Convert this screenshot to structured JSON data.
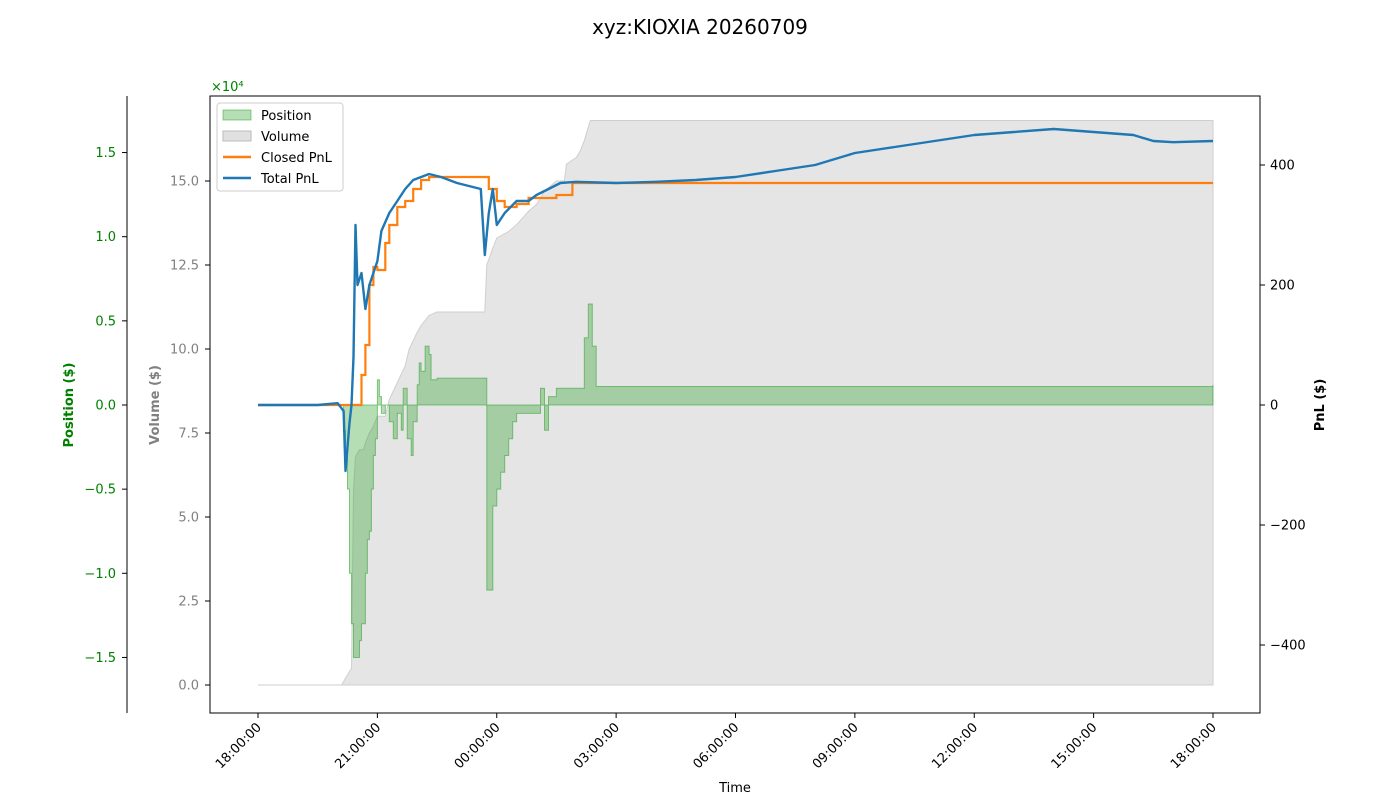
{
  "chart_data": {
    "type": "line",
    "title": "xyz:KIOXIA 20260709",
    "xlabel": "Time",
    "x_ticks": [
      "18:00:00",
      "21:00:00",
      "00:00:00",
      "03:00:00",
      "06:00:00",
      "09:00:00",
      "12:00:00",
      "15:00:00",
      "18:00:00"
    ],
    "position_axis": {
      "label": "Position ($)",
      "multiplier": "×10⁴",
      "color": "#008000",
      "ticks": [
        "1.5",
        "1.0",
        "0.5",
        "0.0",
        "−0.5",
        "−1.0",
        "−1.5"
      ],
      "tick_values": [
        1.5,
        1.0,
        0.5,
        0.0,
        -0.5,
        -1.0,
        -1.5
      ]
    },
    "volume_axis": {
      "label": "Volume ($)",
      "color": "#808080",
      "ticks": [
        "15.0",
        "12.5",
        "10.0",
        "7.5",
        "5.0",
        "2.5",
        "0.0"
      ],
      "tick_values": [
        15.0,
        12.5,
        10.0,
        7.5,
        5.0,
        2.5,
        0.0
      ]
    },
    "pnl_axis": {
      "label": "PnL ($)",
      "color": "#000000",
      "ticks": [
        "400",
        "200",
        "0",
        "−200",
        "−400"
      ],
      "tick_values": [
        400,
        200,
        0,
        -200,
        -400
      ]
    },
    "legend_position": "top-left",
    "legend": [
      "Position",
      "Volume",
      "Closed PnL",
      "Total PnL"
    ],
    "colors": {
      "position_fill": "#2ca02c",
      "volume_fill": "#d3d3d3",
      "closed_pnl": "#ff7f0e",
      "total_pnl": "#1f77b4"
    },
    "series": [
      {
        "name": "Volume",
        "axis": "volume",
        "points": [
          [
            0,
            0
          ],
          [
            2.1,
            0
          ],
          [
            2.2,
            0.2
          ],
          [
            2.35,
            0.5
          ],
          [
            2.4,
            5.8
          ],
          [
            2.45,
            6.8
          ],
          [
            2.55,
            7.0
          ],
          [
            2.65,
            7.0
          ],
          [
            2.7,
            7.2
          ],
          [
            2.8,
            7.5
          ],
          [
            2.9,
            7.7
          ],
          [
            3.0,
            8.0
          ],
          [
            3.2,
            8.0
          ],
          [
            3.3,
            8.5
          ],
          [
            3.5,
            9.0
          ],
          [
            3.7,
            9.5
          ],
          [
            3.8,
            10.0
          ],
          [
            4.0,
            10.5
          ],
          [
            4.1,
            10.7
          ],
          [
            4.3,
            11.0
          ],
          [
            4.5,
            11.1
          ],
          [
            5.7,
            11.1
          ],
          [
            5.75,
            12.5
          ],
          [
            5.9,
            13.0
          ],
          [
            6.0,
            13.3
          ],
          [
            6.3,
            13.5
          ],
          [
            6.5,
            13.7
          ],
          [
            6.8,
            14.1
          ],
          [
            7.0,
            14.3
          ],
          [
            7.2,
            14.7
          ],
          [
            7.5,
            15.0
          ],
          [
            7.7,
            15.0
          ],
          [
            7.75,
            15.5
          ],
          [
            8.0,
            15.7
          ],
          [
            8.1,
            15.9
          ],
          [
            8.2,
            16.2
          ],
          [
            8.3,
            16.6
          ],
          [
            8.35,
            16.8
          ],
          [
            24,
            16.8
          ]
        ]
      },
      {
        "name": "Position",
        "axis": "position",
        "points": [
          [
            0,
            0
          ],
          [
            2.1,
            0
          ],
          [
            2.15,
            -0.15
          ],
          [
            2.2,
            -0.3
          ],
          [
            2.25,
            -0.5
          ],
          [
            2.3,
            -1.0
          ],
          [
            2.35,
            -1.3
          ],
          [
            2.4,
            -1.5
          ],
          [
            2.45,
            -1.5
          ],
          [
            2.55,
            -1.4
          ],
          [
            2.6,
            -1.3
          ],
          [
            2.7,
            -1.0
          ],
          [
            2.75,
            -0.8
          ],
          [
            2.8,
            -0.75
          ],
          [
            2.85,
            -0.5
          ],
          [
            2.9,
            -0.3
          ],
          [
            2.95,
            -0.2
          ],
          [
            3.0,
            0.15
          ],
          [
            3.05,
            0.05
          ],
          [
            3.1,
            -0.05
          ],
          [
            3.2,
            0
          ],
          [
            3.3,
            -0.1
          ],
          [
            3.4,
            -0.2
          ],
          [
            3.5,
            -0.05
          ],
          [
            3.6,
            -0.15
          ],
          [
            3.65,
            0.1
          ],
          [
            3.75,
            -0.2
          ],
          [
            3.85,
            -0.3
          ],
          [
            3.9,
            -0.1
          ],
          [
            4.0,
            0.12
          ],
          [
            4.05,
            0.25
          ],
          [
            4.1,
            0.2
          ],
          [
            4.2,
            0.35
          ],
          [
            4.3,
            0.3
          ],
          [
            4.35,
            0.15
          ],
          [
            4.5,
            0.16
          ],
          [
            5.7,
            0.16
          ],
          [
            5.75,
            -1.1
          ],
          [
            5.85,
            -1.1
          ],
          [
            5.9,
            -0.6
          ],
          [
            6.0,
            -0.5
          ],
          [
            6.1,
            -0.4
          ],
          [
            6.2,
            -0.3
          ],
          [
            6.3,
            -0.2
          ],
          [
            6.4,
            -0.1
          ],
          [
            6.5,
            -0.05
          ],
          [
            7.0,
            -0.05
          ],
          [
            7.1,
            0.1
          ],
          [
            7.2,
            -0.15
          ],
          [
            7.3,
            0.05
          ],
          [
            7.5,
            0.1
          ],
          [
            8.0,
            0.1
          ],
          [
            8.2,
            0.4
          ],
          [
            8.3,
            0.6
          ],
          [
            8.4,
            0.35
          ],
          [
            8.5,
            0.11
          ],
          [
            24,
            0.12
          ]
        ]
      },
      {
        "name": "Closed PnL",
        "axis": "pnl",
        "points": [
          [
            0,
            0
          ],
          [
            2.5,
            0
          ],
          [
            2.6,
            50
          ],
          [
            2.7,
            100
          ],
          [
            2.8,
            200
          ],
          [
            2.9,
            230
          ],
          [
            3.0,
            225
          ],
          [
            3.2,
            270
          ],
          [
            3.3,
            300
          ],
          [
            3.5,
            330
          ],
          [
            3.7,
            340
          ],
          [
            3.9,
            360
          ],
          [
            4.1,
            375
          ],
          [
            4.3,
            380
          ],
          [
            5.7,
            380
          ],
          [
            5.8,
            360
          ],
          [
            6.0,
            340
          ],
          [
            6.2,
            330
          ],
          [
            6.5,
            335
          ],
          [
            6.8,
            345
          ],
          [
            7.0,
            345
          ],
          [
            7.5,
            350
          ],
          [
            7.7,
            350
          ],
          [
            7.9,
            370
          ],
          [
            24,
            370
          ]
        ]
      },
      {
        "name": "Total PnL",
        "axis": "pnl",
        "points": [
          [
            0,
            0
          ],
          [
            1.5,
            0
          ],
          [
            2.0,
            3
          ],
          [
            2.15,
            -10
          ],
          [
            2.2,
            -110
          ],
          [
            2.3,
            -30
          ],
          [
            2.35,
            0
          ],
          [
            2.4,
            80
          ],
          [
            2.45,
            300
          ],
          [
            2.5,
            200
          ],
          [
            2.6,
            220
          ],
          [
            2.7,
            160
          ],
          [
            2.8,
            200
          ],
          [
            3.0,
            240
          ],
          [
            3.1,
            290
          ],
          [
            3.3,
            320
          ],
          [
            3.5,
            340
          ],
          [
            3.7,
            360
          ],
          [
            3.9,
            375
          ],
          [
            4.1,
            380
          ],
          [
            4.3,
            385
          ],
          [
            4.6,
            380
          ],
          [
            5.0,
            370
          ],
          [
            5.3,
            365
          ],
          [
            5.6,
            360
          ],
          [
            5.7,
            250
          ],
          [
            5.8,
            320
          ],
          [
            5.9,
            360
          ],
          [
            6.0,
            300
          ],
          [
            6.2,
            320
          ],
          [
            6.5,
            340
          ],
          [
            6.8,
            340
          ],
          [
            7.0,
            350
          ],
          [
            7.3,
            360
          ],
          [
            7.6,
            370
          ],
          [
            8.0,
            372
          ],
          [
            9.0,
            370
          ],
          [
            10.0,
            372
          ],
          [
            11.0,
            375
          ],
          [
            12.0,
            380
          ],
          [
            13.0,
            390
          ],
          [
            14.0,
            400
          ],
          [
            15.0,
            420
          ],
          [
            16.0,
            430
          ],
          [
            17.0,
            440
          ],
          [
            18.0,
            450
          ],
          [
            19.0,
            455
          ],
          [
            20.0,
            460
          ],
          [
            21.0,
            455
          ],
          [
            22.0,
            450
          ],
          [
            22.5,
            440
          ],
          [
            23.0,
            438
          ],
          [
            24,
            440
          ]
        ]
      }
    ]
  }
}
